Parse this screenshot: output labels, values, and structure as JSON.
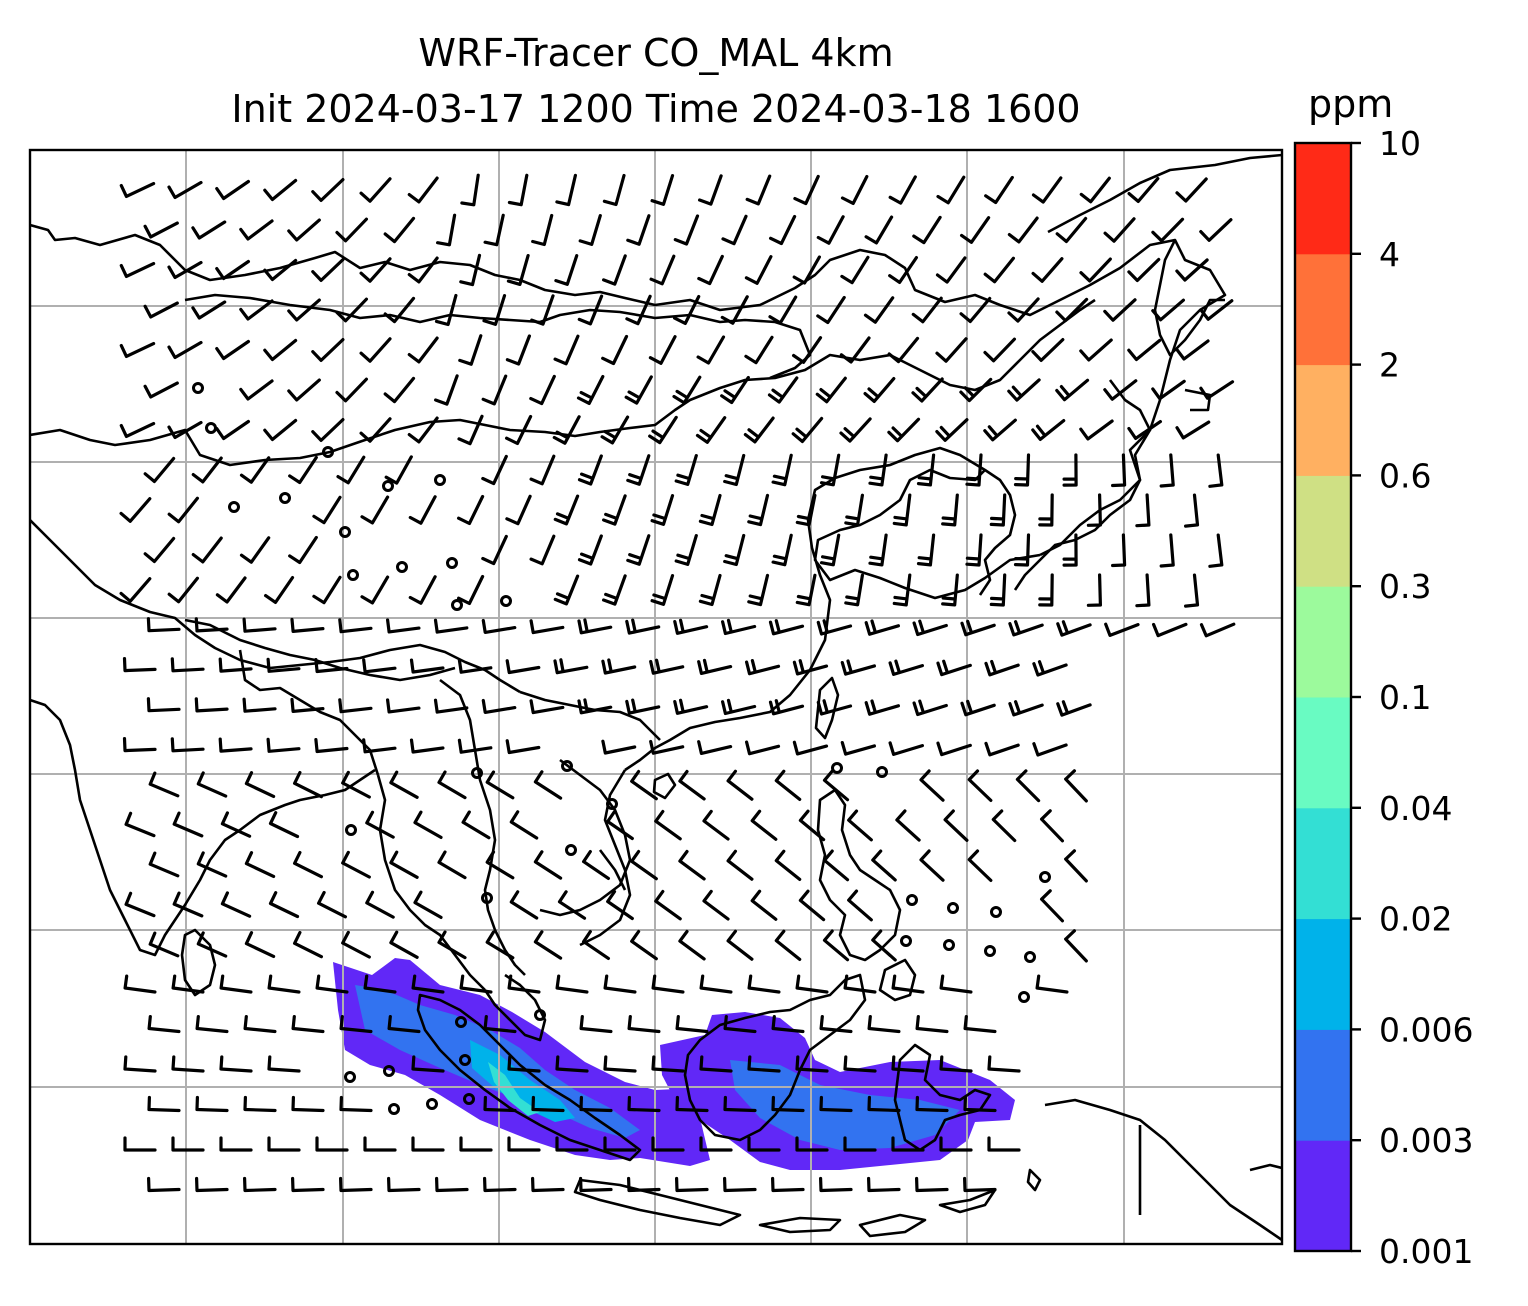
{
  "title": {
    "line1": "WRF-Tracer CO_MAL 4km",
    "line2": "Init 2024-03-17 1200 Time 2024-03-18 1600"
  },
  "colorbar": {
    "unit": "ppm",
    "levels": [
      "0.001",
      "0.003",
      "0.006",
      "0.02",
      "0.04",
      "0.1",
      "0.3",
      "0.6",
      "2",
      "4",
      "10"
    ],
    "colors": [
      "#6128f7",
      "#3273f0",
      "#00b2ea",
      "#33dfd4",
      "#69fbc2",
      "#9cfa9c",
      "#cfe084",
      "#ffb061",
      "#ff7139",
      "#ff2a17"
    ]
  },
  "map": {
    "projection": "lat-lon gridded map, East & Southeast Asia",
    "gridlines": true,
    "wind_barbs": true,
    "tracer_plume_region": "Sumatra, Java and Borneo (Indonesia / Malaysia)"
  }
}
